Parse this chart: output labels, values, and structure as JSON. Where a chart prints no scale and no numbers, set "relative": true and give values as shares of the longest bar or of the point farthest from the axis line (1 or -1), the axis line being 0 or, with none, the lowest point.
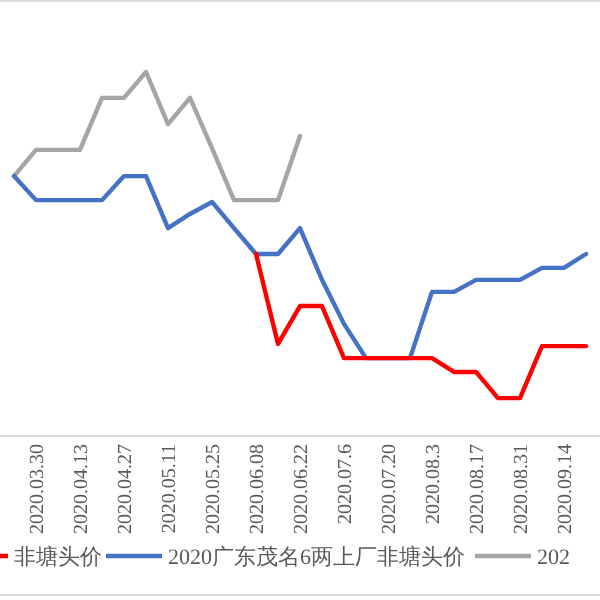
{
  "chart_data": {
    "type": "line",
    "relative": true,
    "legend": "bottom",
    "categories": [
      null,
      "2020.03.30",
      null,
      "2020.04.13",
      null,
      "2020.04.27",
      null,
      "2020.05.11",
      null,
      "2020.05.25",
      null,
      "2020.06.08",
      null,
      "2020.06.22",
      null,
      "2020.07.6",
      null,
      "2020.07.20",
      null,
      "2020.08.3",
      null,
      "2020.08.17",
      null,
      "2020.08.31",
      null,
      "2020.09.14",
      null
    ],
    "series": [
      {
        "name": "非塘头价",
        "color": "#ff0000",
        "values": [
          null,
          null,
          null,
          null,
          null,
          null,
          null,
          null,
          null,
          null,
          null,
          0.5,
          0.253,
          0.357,
          0.357,
          0.214,
          0.214,
          0.214,
          0.214,
          0.214,
          0.176,
          0.176,
          0.104,
          0.104,
          0.247,
          0.247,
          0.247
        ]
      },
      {
        "name": "2020广东茂名6两上厂非塘头价",
        "color": "#4472c4",
        "values": [
          0.714,
          0.648,
          0.648,
          0.648,
          0.648,
          0.714,
          0.714,
          0.571,
          0.61,
          0.643,
          0.571,
          0.5,
          0.5,
          0.571,
          0.429,
          0.308,
          0.214,
          0.214,
          0.214,
          0.396,
          0.396,
          0.429,
          0.429,
          0.429,
          0.462,
          0.462,
          0.5
        ]
      },
      {
        "name": "202",
        "color": "#a5a5a5",
        "values": [
          0.714,
          0.786,
          0.786,
          0.786,
          0.929,
          0.929,
          1,
          0.857,
          0.929,
          0.791,
          0.648,
          0.648,
          0.648,
          0.824,
          null,
          null,
          null,
          null,
          null,
          null,
          null,
          null,
          null,
          null,
          null,
          null,
          null
        ]
      }
    ]
  }
}
